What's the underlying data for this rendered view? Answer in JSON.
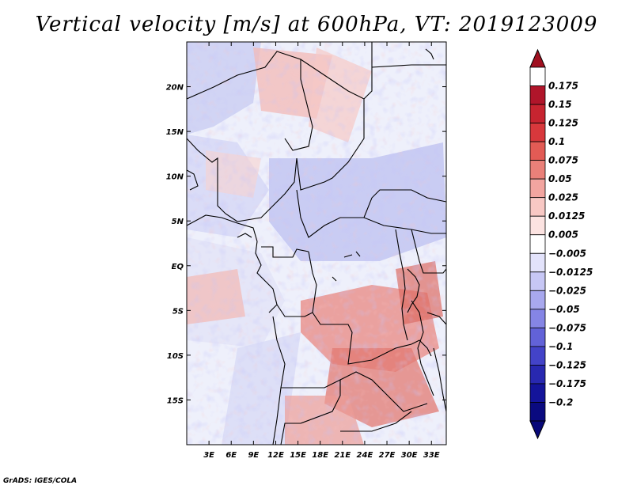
{
  "title": "Vertical velocity [m/s] at 600hPa, VT: 2019123009",
  "credit": "GrADS: IGES/COLA",
  "map": {
    "lon_range": [
      0,
      35
    ],
    "lat_range": [
      -20,
      25
    ],
    "y_ticks": [
      "20N",
      "15N",
      "10N",
      "5N",
      "EQ",
      "5S",
      "10S",
      "15S"
    ],
    "y_tick_values": [
      20,
      15,
      10,
      5,
      0,
      -5,
      -10,
      -15
    ],
    "x_ticks": [
      "3E",
      "6E",
      "9E",
      "12E",
      "15E",
      "18E",
      "21E",
      "24E",
      "27E",
      "30E",
      "33E"
    ],
    "x_tick_values": [
      3,
      6,
      9,
      12,
      15,
      18,
      21,
      24,
      27,
      30,
      33
    ],
    "field": "vertical velocity",
    "units": "m/s",
    "level": "600hPa"
  },
  "colorbar": {
    "labels": [
      "0.175",
      "0.15",
      "0.125",
      "0.1",
      "0.075",
      "0.05",
      "0.025",
      "0.0125",
      "0.005",
      "−0.005",
      "−0.0125",
      "−0.025",
      "−0.05",
      "−0.075",
      "−0.1",
      "−0.125",
      "−0.175",
      "−0.2"
    ],
    "colors": [
      "#ffffff",
      "#b0152a",
      "#c72430",
      "#d8383c",
      "#e25b55",
      "#ea8079",
      "#f2a5a0",
      "#f8c8c4",
      "#fce3e1",
      "#ffffff",
      "#e3e3fb",
      "#c7c7f5",
      "#a8a8ee",
      "#8585e5",
      "#6262d8",
      "#4343c8",
      "#2828b0",
      "#14149a",
      "#0a0a80"
    ],
    "arrow_top_color": "#a01020",
    "arrow_bottom_color": "#080878"
  }
}
